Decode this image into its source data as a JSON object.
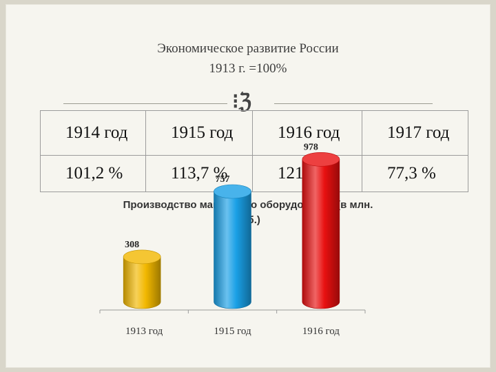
{
  "header": {
    "title_line1": "Экономическое развитие России",
    "title_line2": "1913 г. =100%"
  },
  "table": {
    "years": [
      "1914 год",
      "1915 год",
      "1916 год",
      "1917 год"
    ],
    "values": [
      "101,2 %",
      "113,7 %",
      "121,5 %",
      "77,3 %"
    ]
  },
  "chart_data": {
    "type": "bar",
    "title": "Производство машинного оборудования (в млн. руб.)",
    "title_line1": "Производство машинного оборудования (в млн.",
    "title_line2": "руб.)",
    "categories": [
      "1913 год",
      "1915 год",
      "1916 год"
    ],
    "values": [
      308,
      757,
      978
    ],
    "data_labels": [
      "308",
      "757",
      "978"
    ],
    "colors": [
      "#f2b800",
      "#1aa0e6",
      "#e81010"
    ],
    "xlabel": "",
    "ylabel": "",
    "grid": false,
    "legend": "none"
  },
  "colors": {
    "background": "#f6f5ef",
    "frame": "#d9d6ca"
  }
}
